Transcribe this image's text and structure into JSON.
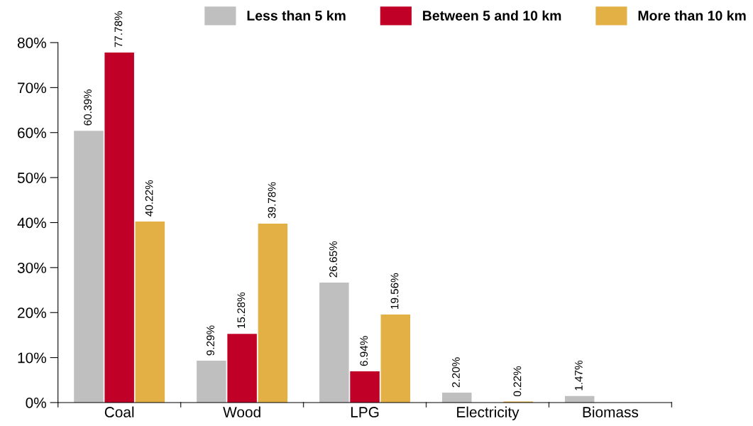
{
  "chart_data": {
    "type": "bar",
    "categories": [
      "Coal",
      "Wood",
      "LPG",
      "Electricity",
      "Biomass"
    ],
    "series": [
      {
        "name": "Less than 5 km",
        "color": "#bfbfbf",
        "values": [
          60.39,
          9.29,
          26.65,
          2.2,
          1.47
        ],
        "value_labels": [
          "60.39%",
          "9.29%",
          "26.65%",
          "2.20%",
          "1.47%"
        ]
      },
      {
        "name": "Between 5 and 10 km",
        "color": "#c00027",
        "values": [
          77.78,
          15.28,
          6.94,
          0,
          0
        ],
        "value_labels": [
          "77.78%",
          "15.28%",
          "6.94%",
          null,
          null
        ]
      },
      {
        "name": "More than 10 km",
        "color": "#e3b046",
        "values": [
          40.22,
          39.78,
          19.56,
          0.22,
          0
        ],
        "value_labels": [
          "40.22%",
          "39.78%",
          "19.56%",
          "0.22%",
          null
        ]
      }
    ],
    "ylim": [
      0,
      80
    ],
    "yticks": [
      {
        "value": 0,
        "label": "0%"
      },
      {
        "value": 10,
        "label": "10%"
      },
      {
        "value": 20,
        "label": "20%"
      },
      {
        "value": 30,
        "label": "30%"
      },
      {
        "value": 40,
        "label": "40%"
      },
      {
        "value": 50,
        "label": "50%"
      },
      {
        "value": 60,
        "label": "60%"
      },
      {
        "value": 70,
        "label": "70%"
      },
      {
        "value": 80,
        "label": "80%"
      }
    ],
    "grid": false,
    "legend": "top right"
  }
}
